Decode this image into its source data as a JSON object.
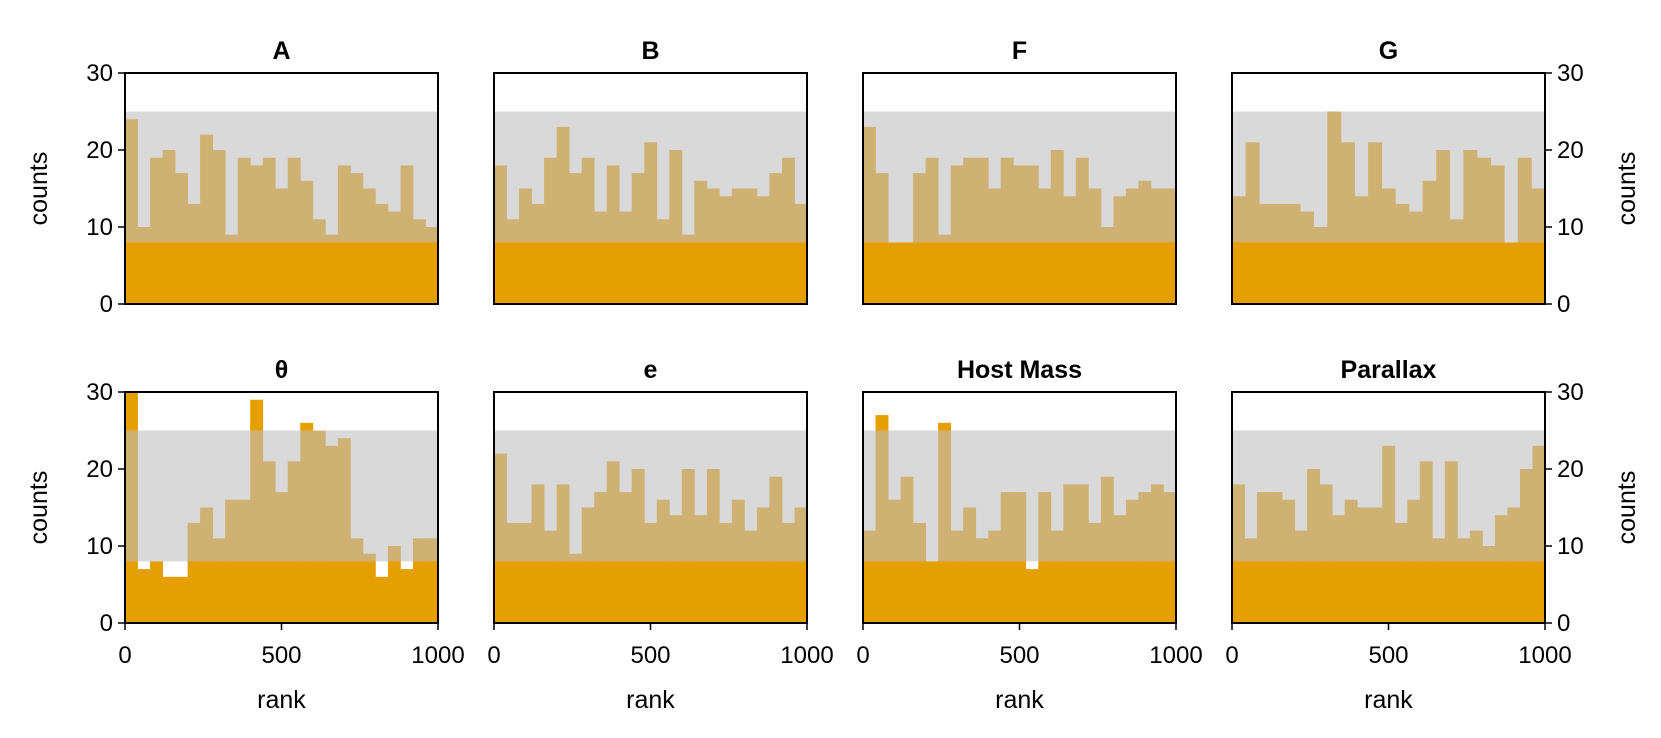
{
  "colors": {
    "bar": "#E69F00",
    "band": "#BFBFBF",
    "band_opacity": 0.6,
    "frame": "#000000"
  },
  "chart_data": [
    {
      "type": "bar",
      "title": "A",
      "xlabel": "",
      "ylabel": "counts",
      "xlim": [
        0,
        1000
      ],
      "ylim": [
        0,
        30
      ],
      "xticks": [
        "0",
        "500",
        "1000"
      ],
      "yticks": [
        "0",
        "10",
        "20",
        "30"
      ],
      "band": [
        8,
        25
      ],
      "values": [
        24,
        10,
        19,
        20,
        17,
        13,
        22,
        20,
        9,
        19,
        18,
        19,
        15,
        19,
        16,
        11,
        9,
        18,
        17,
        15,
        13,
        12,
        18,
        11,
        10
      ]
    },
    {
      "type": "bar",
      "title": "B",
      "xlabel": "",
      "ylabel": "",
      "xlim": [
        0,
        1000
      ],
      "ylim": [
        0,
        30
      ],
      "xticks": [
        "0",
        "500",
        "1000"
      ],
      "yticks": [
        "0",
        "10",
        "20",
        "30"
      ],
      "band": [
        8,
        25
      ],
      "values": [
        18,
        11,
        15,
        13,
        19,
        23,
        17,
        19,
        12,
        18,
        12,
        17,
        21,
        11,
        20,
        9,
        16,
        15,
        14,
        15,
        15,
        14,
        17,
        19,
        13
      ]
    },
    {
      "type": "bar",
      "title": "F",
      "xlabel": "",
      "ylabel": "",
      "xlim": [
        0,
        1000
      ],
      "ylim": [
        0,
        30
      ],
      "xticks": [
        "0",
        "500",
        "1000"
      ],
      "yticks": [
        "0",
        "10",
        "20",
        "30"
      ],
      "band": [
        8,
        25
      ],
      "values": [
        23,
        17,
        8,
        8,
        17,
        19,
        9,
        18,
        19,
        19,
        15,
        19,
        18,
        18,
        15,
        20,
        14,
        19,
        15,
        10,
        14,
        15,
        16,
        15,
        15
      ]
    },
    {
      "type": "bar",
      "title": "G",
      "xlabel": "",
      "ylabel": "counts",
      "xlim": [
        0,
        1000
      ],
      "ylim": [
        0,
        30
      ],
      "xticks": [
        "0",
        "500",
        "1000"
      ],
      "yticks": [
        "0",
        "10",
        "20",
        "30"
      ],
      "band": [
        8,
        25
      ],
      "values": [
        14,
        21,
        13,
        13,
        13,
        12,
        10,
        25,
        21,
        14,
        21,
        15,
        13,
        12,
        16,
        20,
        11,
        20,
        19,
        18,
        8,
        19,
        15
      ]
    },
    {
      "type": "bar",
      "title": "θ",
      "xlabel": "rank",
      "ylabel": "counts",
      "xlim": [
        0,
        1000
      ],
      "ylim": [
        0,
        30
      ],
      "xticks": [
        "0",
        "500",
        "1000"
      ],
      "yticks": [
        "0",
        "10",
        "20",
        "30"
      ],
      "band": [
        8,
        25
      ],
      "values": [
        30,
        7,
        8,
        6,
        6,
        13,
        15,
        11,
        16,
        16,
        29,
        21,
        17,
        21,
        26,
        25,
        23,
        24,
        11,
        9,
        6,
        10,
        7,
        11,
        11
      ]
    },
    {
      "type": "bar",
      "title": "e",
      "xlabel": "rank",
      "ylabel": "",
      "xlim": [
        0,
        1000
      ],
      "ylim": [
        0,
        30
      ],
      "xticks": [
        "0",
        "500",
        "1000"
      ],
      "yticks": [
        "0",
        "10",
        "20",
        "30"
      ],
      "band": [
        8,
        25
      ],
      "values": [
        22,
        13,
        13,
        18,
        12,
        18,
        9,
        15,
        17,
        21,
        17,
        20,
        13,
        16,
        14,
        20,
        14,
        20,
        13,
        16,
        12,
        15,
        19,
        13,
        15
      ]
    },
    {
      "type": "bar",
      "title": "Host Mass",
      "xlabel": "rank",
      "ylabel": "",
      "xlim": [
        0,
        1000
      ],
      "ylim": [
        0,
        30
      ],
      "xticks": [
        "0",
        "500",
        "1000"
      ],
      "yticks": [
        "0",
        "10",
        "20",
        "30"
      ],
      "band": [
        8,
        25
      ],
      "values": [
        12,
        27,
        16,
        19,
        13,
        8,
        26,
        12,
        15,
        11,
        12,
        17,
        17,
        7,
        17,
        12,
        18,
        18,
        13,
        19,
        14,
        16,
        17,
        18,
        17
      ]
    },
    {
      "type": "bar",
      "title": "Parallax",
      "xlabel": "rank",
      "ylabel": "counts",
      "xlim": [
        0,
        1000
      ],
      "ylim": [
        0,
        30
      ],
      "xticks": [
        "0",
        "500",
        "1000"
      ],
      "yticks": [
        "0",
        "10",
        "20",
        "30"
      ],
      "band": [
        8,
        25
      ],
      "values": [
        18,
        11,
        17,
        17,
        16,
        12,
        20,
        18,
        14,
        16,
        15,
        15,
        23,
        13,
        16,
        21,
        11,
        21,
        11,
        12,
        10,
        14,
        15,
        20,
        23
      ]
    }
  ]
}
